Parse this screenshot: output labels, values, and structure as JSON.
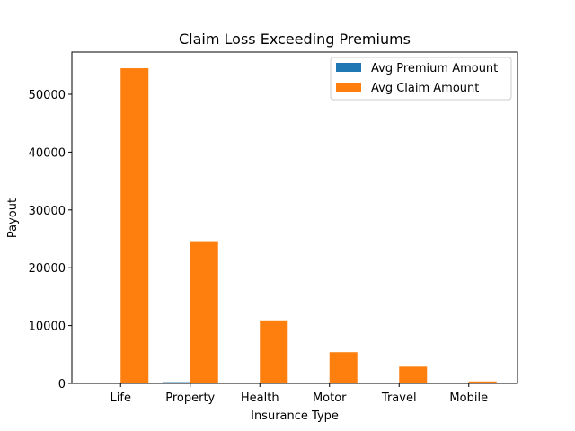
{
  "chart_data": {
    "type": "bar",
    "title": "Claim Loss Exceeding Premiums",
    "xlabel": "Insurance Type",
    "ylabel": "Payout",
    "categories": [
      "Life",
      "Property",
      "Health",
      "Motor",
      "Travel",
      "Mobile"
    ],
    "series": [
      {
        "name": "Avg Premium Amount",
        "color": "#1f77b4",
        "values": [
          60,
          220,
          140,
          40,
          20,
          10
        ]
      },
      {
        "name": "Avg Claim Amount",
        "color": "#ff7f0e",
        "values": [
          54500,
          24600,
          10900,
          5400,
          2900,
          350
        ]
      }
    ],
    "ylim": [
      0,
      57300
    ],
    "yticks": [
      0,
      10000,
      20000,
      30000,
      40000,
      50000
    ],
    "ytick_labels": [
      "0",
      "10000",
      "20000",
      "30000",
      "40000",
      "50000"
    ],
    "grid": false,
    "legend_position": "top-right"
  }
}
